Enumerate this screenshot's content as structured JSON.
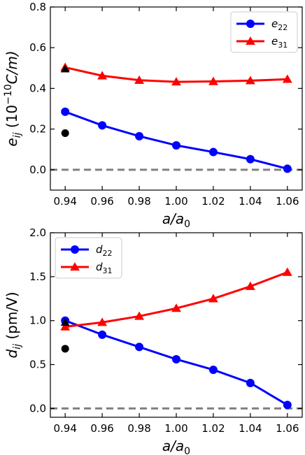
{
  "chart_data": [
    {
      "type": "line",
      "xlabel": "a/a₀",
      "ylabel": "e_ij (10^-10 C/m)",
      "ylabel_parts": {
        "main": "e",
        "sub": "ij",
        "open": " (10",
        "sup": "−10",
        "unit": "C/m)"
      },
      "xlabel_parts": {
        "a": "a/a",
        "sub": "0"
      },
      "xlim": [
        0.932,
        1.068
      ],
      "ylim": [
        -0.1,
        0.8
      ],
      "xticks": [
        0.94,
        0.96,
        0.98,
        1.0,
        1.02,
        1.04,
        1.06
      ],
      "xtick_labels": [
        "0.94",
        "0.96",
        "0.98",
        "1.00",
        "1.02",
        "1.04",
        "1.06"
      ],
      "yticks": [
        0.0,
        0.2,
        0.4,
        0.6,
        0.8
      ],
      "ytick_labels": [
        "0.0",
        "0.2",
        "0.4",
        "0.6",
        "0.8"
      ],
      "x": [
        0.94,
        0.96,
        0.98,
        1.0,
        1.02,
        1.04,
        1.06
      ],
      "series": [
        {
          "name": "e22",
          "label_main": "e",
          "label_sub": "22",
          "marker": "circle",
          "color": "#0000ff",
          "values": [
            0.285,
            0.218,
            0.165,
            0.12,
            0.087,
            0.052,
            0.005
          ]
        },
        {
          "name": "e31",
          "label_main": "e",
          "label_sub": "31",
          "marker": "triangle",
          "color": "#ff0000",
          "values": [
            0.503,
            0.462,
            0.44,
            0.432,
            0.434,
            0.438,
            0.445
          ]
        }
      ],
      "reference_points": [
        {
          "x": 0.94,
          "y": 0.18,
          "marker": "circle",
          "color": "#000000"
        },
        {
          "x": 0.94,
          "y": 0.495,
          "marker": "triangle",
          "color": "#000000"
        }
      ],
      "hline": {
        "y": 0.0,
        "color": "#808080",
        "style": "dashed"
      },
      "legend": "top-right",
      "grid": false
    },
    {
      "type": "line",
      "xlabel": "a/a₀",
      "ylabel": "d_ij (pm/V)",
      "ylabel_parts": {
        "main": "d",
        "sub": "ij",
        "open": " (pm/V)",
        "sup": "",
        "unit": ""
      },
      "xlabel_parts": {
        "a": "a/a",
        "sub": "0"
      },
      "xlim": [
        0.932,
        1.068
      ],
      "ylim": [
        -0.1,
        2.0
      ],
      "xticks": [
        0.94,
        0.96,
        0.98,
        1.0,
        1.02,
        1.04,
        1.06
      ],
      "xtick_labels": [
        "0.94",
        "0.96",
        "0.98",
        "1.00",
        "1.02",
        "1.04",
        "1.06"
      ],
      "yticks": [
        0.0,
        0.5,
        1.0,
        1.5,
        2.0
      ],
      "ytick_labels": [
        "0.0",
        "0.5",
        "1.0",
        "1.5",
        "2.0"
      ],
      "x": [
        0.94,
        0.96,
        0.98,
        1.0,
        1.02,
        1.04,
        1.06
      ],
      "series": [
        {
          "name": "d22",
          "label_main": "d",
          "label_sub": "22",
          "marker": "circle",
          "color": "#0000ff",
          "values": [
            1.0,
            0.84,
            0.7,
            0.56,
            0.44,
            0.29,
            0.04
          ]
        },
        {
          "name": "d31",
          "label_main": "d",
          "label_sub": "31",
          "marker": "triangle",
          "color": "#ff0000",
          "values": [
            0.93,
            0.98,
            1.05,
            1.14,
            1.25,
            1.39,
            1.55
          ]
        }
      ],
      "reference_points": [
        {
          "x": 0.94,
          "y": 0.98,
          "marker": "triangle",
          "color": "#000000"
        },
        {
          "x": 0.94,
          "y": 0.68,
          "marker": "circle",
          "color": "#000000"
        }
      ],
      "hline": {
        "y": 0.0,
        "color": "#808080",
        "style": "dashed"
      },
      "legend": "top-left",
      "grid": false
    }
  ]
}
